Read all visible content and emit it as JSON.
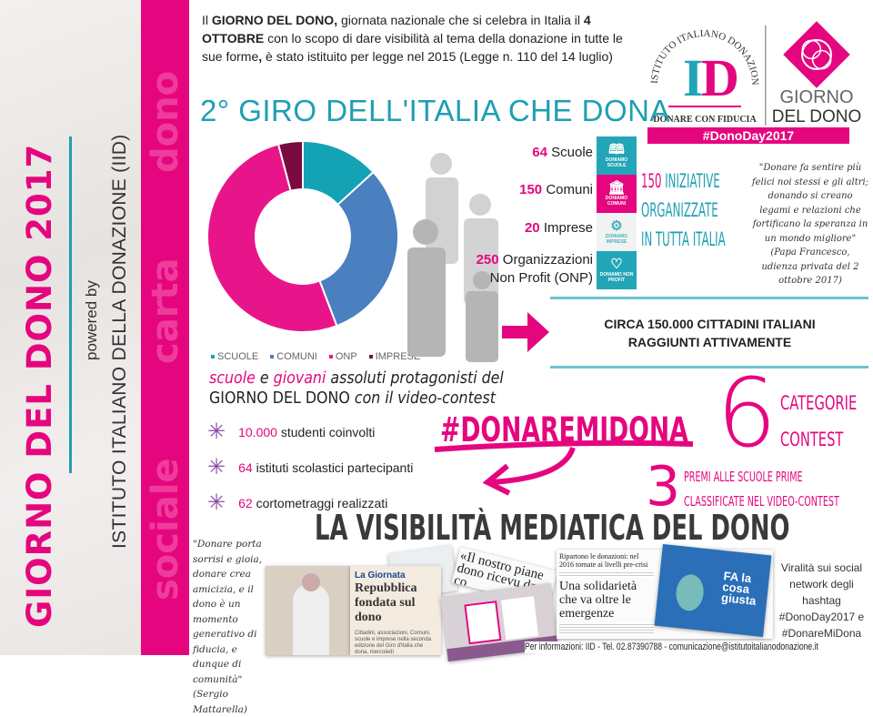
{
  "sidebar": {
    "title": "GIORNO DEL DONO 2017",
    "powered_by": "powered by",
    "organization": "ISTITUTO ITALIANO DELLA DONAZIONE (IID)",
    "background_words": [
      "dono",
      "carta",
      "sociale"
    ]
  },
  "intro": {
    "p1": "Il ",
    "b1": "GIORNO DEL DONO,",
    "p2": " giornata nazionale che si celebra in Italia il ",
    "b2": "4 OTTOBRE",
    "p3": " con lo scopo di dare visibilità al tema della donazione in tutte le sue forme",
    "b3": ",",
    "p4": " è stato istituito per legge nel 2015 (Legge n. 110 del 14 luglio)"
  },
  "logo": {
    "arc_text": "ISTITUTO ITALIANO DONAZIONE",
    "monogram": "ID",
    "tagline": "DONARE CON FIDUCIA",
    "giorno": "GIORNO",
    "del_dono": "DEL DONO",
    "hashtag": "#DonoDay2017"
  },
  "giro_title": "2° GIRO DELL'ITALIA CHE DONA",
  "chart_data": {
    "type": "pie",
    "donut": true,
    "categories": [
      "SCUOLE",
      "COMUNI",
      "ONP",
      "IMPRESE"
    ],
    "values": [
      64,
      150,
      250,
      20
    ],
    "colors": [
      "#13a3b5",
      "#4a7fc0",
      "#e8158a",
      "#7a0a3f"
    ],
    "legend_position": "bottom"
  },
  "stats": [
    {
      "num": "64",
      "label": "Scuole",
      "tile": "DONIAMO SCUOLE",
      "icon": "book-icon",
      "color": "#22a5b8"
    },
    {
      "num": "150",
      "label": "Comuni",
      "tile": "DONIAMO COMUNI",
      "icon": "town-hall-icon",
      "color": "#e5067f"
    },
    {
      "num": "20",
      "label": "Imprese",
      "tile": "DONIAMO IMPRESE",
      "icon": "gears-icon",
      "color": "#f2f2f2"
    },
    {
      "num": "250",
      "label": "Organizzazioni",
      "label2": "Non Profit (ONP)",
      "tile": "DONIAMO NON PROFIT",
      "icon": "heart-icon",
      "color": "#22a5b8"
    }
  ],
  "iniziative": {
    "num": "150",
    "l1": " INIZIATIVE",
    "l2": "ORGANIZZATE",
    "l3": "IN TUTTA ITALIA"
  },
  "quote_pope": {
    "text": "\"Donare fa sentire più felici noi stessi e gli altri; donando si creano legami e relazioni che fortificano la speranza in un mondo migliore\"",
    "author": "(Papa Francesco, udienza privata del 2 ottobre 2017)"
  },
  "citizens": {
    "l1": "CIRCA 150.000 CITTADINI ITALIANI",
    "l2": "RAGGIUNTI ATTIVAMENTE"
  },
  "contest_sub": {
    "w1": "scuole",
    "w2": " e ",
    "w3": "giovani",
    "w4": " assoluti protagonisti del",
    "l2a": "GIORNO DEL DONO",
    "l2b": " con il video-contest"
  },
  "bullets": [
    {
      "num": "10.000",
      "text": " studenti coinvolti"
    },
    {
      "num": "64",
      "text": " istituti scolastici partecipanti"
    },
    {
      "num": "62",
      "text": " cortometraggi realizzati"
    }
  ],
  "hashtag_contest": "#DONAREMIDONA",
  "categories": {
    "num": "6",
    "l1": "CATEGORIE",
    "l2": "CONTEST"
  },
  "prizes": {
    "num": "3",
    "l1": "PREMI ALLE SCUOLE PRIME",
    "l2": "CLASSIFICATE NEL VIDEO-CONTEST"
  },
  "media_title": "LA VISIBILITÀ MEDIATICA DEL DONO",
  "quote_president": {
    "text": "\"Donare porta sorrisi e gioia, donare crea amicizia, e il dono è un momento generativo di fiducia, e dunque di comunità\"",
    "author": "(Sergio Mattarella)"
  },
  "clippings": {
    "c1_head": "La Giornata",
    "c1_title": "Repubblica fondata sul dono",
    "c1_body": "Cittadini, associazioni, Comuni, scuole e imprese nella seconda edizione del Giro d'Italia che dona, mercoledì",
    "c2_title": "«Il nostro piane dono ricevu da co",
    "c3_head": "Ripartono le donazioni: nel 2016 tornate ai livelli pre-crisi",
    "c3_title": "Una solidarietà che va oltre le emergenze",
    "c4_title": "FA la cosa giusta"
  },
  "viral": "Viralità sui social network degli hashtag #DonoDay2017 e #DonareMiDona",
  "footer": "Per informazioni: IID - Tel. 02.87390788 - comunicazione@istitutoitalianodonazione.it",
  "colors": {
    "pink": "#e5067f",
    "teal": "#1e9fb2"
  }
}
